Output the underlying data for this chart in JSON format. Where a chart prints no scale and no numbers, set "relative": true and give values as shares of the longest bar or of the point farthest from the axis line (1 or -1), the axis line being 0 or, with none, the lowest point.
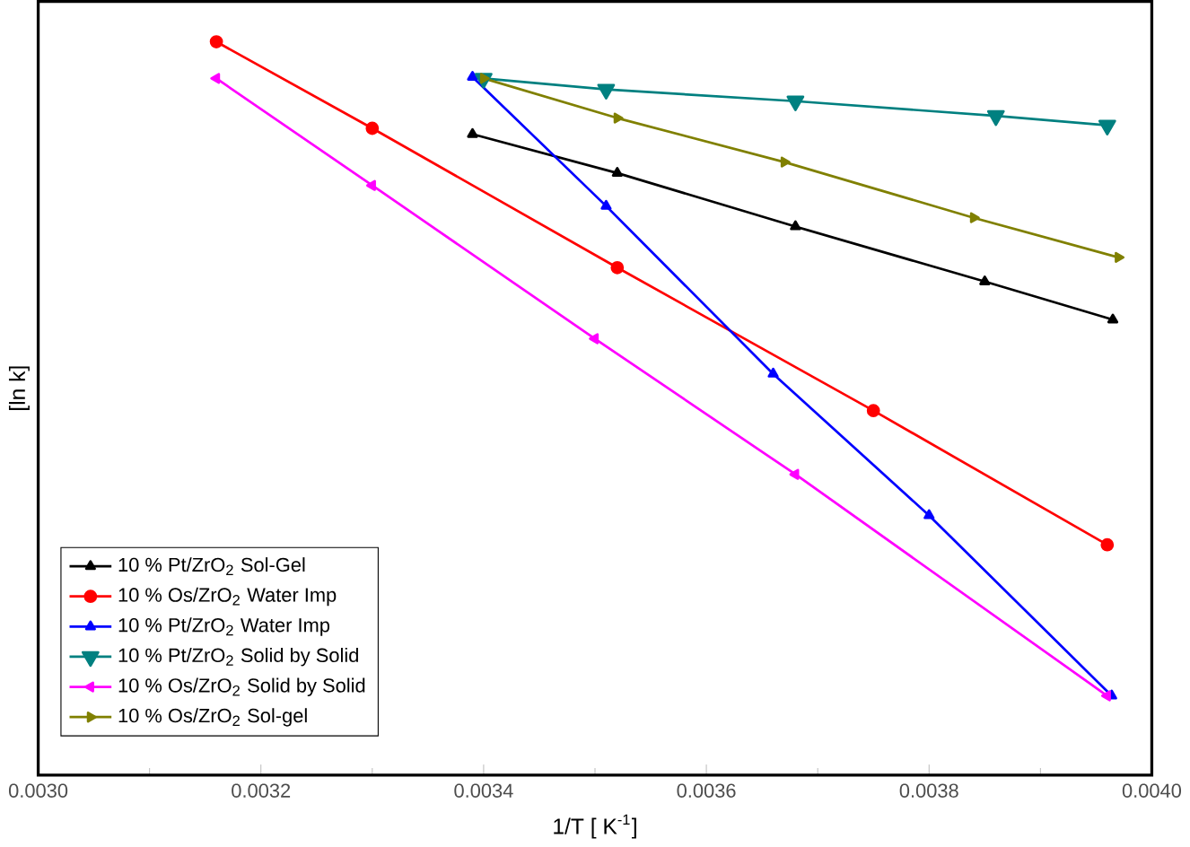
{
  "chart_data": {
    "type": "line",
    "relative": true,
    "xlabel": "1/T  [ K$^{-1}$]",
    "ylabel": "[ln k]",
    "xlim": [
      0.003,
      0.004
    ],
    "xticks": [
      {
        "value": 0.003,
        "label": "0.0030"
      },
      {
        "value": 0.0032,
        "label": "0.0032"
      },
      {
        "value": 0.0034,
        "label": "0.0034"
      },
      {
        "value": 0.0036,
        "label": "0.0036"
      },
      {
        "value": 0.0038,
        "label": "0.0038"
      },
      {
        "value": 0.004,
        "label": "0.0040"
      }
    ],
    "legend": "bottom left",
    "grid": false,
    "line_style": "solid",
    "series": [
      {
        "name": "10 % Pt/ZrO$_{2}$ Sol-Gel",
        "color": "#000000",
        "marker": "triangle",
        "x": [
          0.00339,
          0.00352,
          0.00368,
          0.00385,
          0.003965
        ],
        "values": [
          0.874,
          0.821,
          0.748,
          0.673,
          0.621
        ]
      },
      {
        "name": "10 % Os/ZrO$_{2}$ Water Imp",
        "color": "#ff0000",
        "marker": "circle",
        "x": [
          0.00316,
          0.0033,
          0.00352,
          0.00375,
          0.00396
        ],
        "values": [
          1.0,
          0.882,
          0.692,
          0.497,
          0.314
        ]
      },
      {
        "name": "10 % Pt/ZrO$_{2}$ Water Imp",
        "color": "#0000ff",
        "marker": "triangle",
        "x": [
          0.00339,
          0.00351,
          0.00366,
          0.0038,
          0.003964
        ],
        "values": [
          0.952,
          0.776,
          0.547,
          0.354,
          0.108
        ]
      },
      {
        "name": "10 % Pt/ZrO$_{2}$ Solid by Solid",
        "color": "#008080",
        "marker": "triangle-down",
        "x": [
          0.0034,
          0.00351,
          0.00368,
          0.00386,
          0.00396
        ],
        "values": [
          0.95,
          0.935,
          0.919,
          0.899,
          0.886
        ]
      },
      {
        "name": "10 % Os/ZrO$_{2}$ Solid by Solid",
        "color": "#ff00ff",
        "marker": "triangle-left",
        "x": [
          0.00316,
          0.0033,
          0.0035,
          0.00368,
          0.00396
        ],
        "values": [
          0.95,
          0.804,
          0.595,
          0.41,
          0.108
        ]
      },
      {
        "name": "10 % Os/ZrO$_{2}$ Sol-gel",
        "color": "#808000",
        "marker": "triangle-right",
        "x": [
          0.0034,
          0.00352,
          0.00367,
          0.00384,
          0.00397
        ],
        "values": [
          0.95,
          0.896,
          0.836,
          0.76,
          0.706
        ]
      }
    ]
  }
}
